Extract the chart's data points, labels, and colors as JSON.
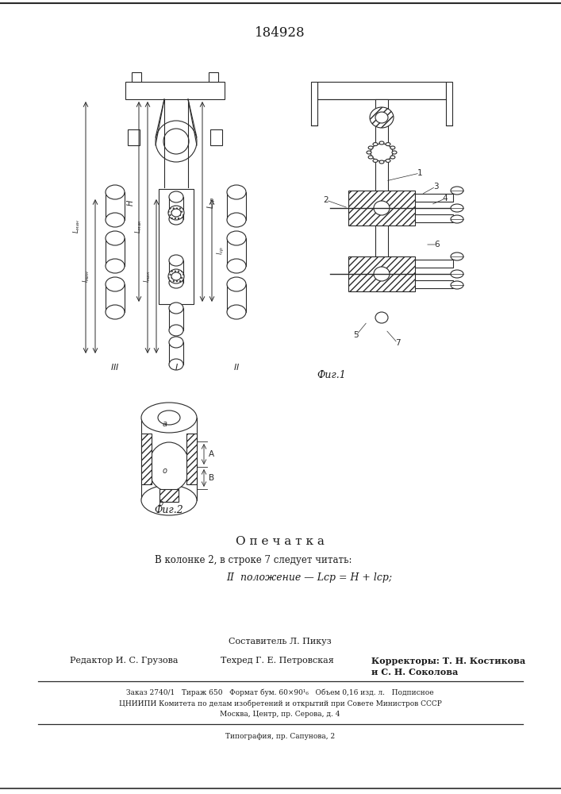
{
  "patent_number": "184928",
  "fig1_label": "Фиг.1",
  "fig2_label": "Фиг.2",
  "opechatka_title": "О п е ч а т к а",
  "opechatka_line1": "В колонке 2, в строке 7 следует читать:",
  "opechatka_line2": "II  положение — Lср = H + lср;",
  "sostavitel": "Составитель Л. Пикуз",
  "redaktor": "Редактор И. С. Грузова",
  "tehred": "Техред Г. Е. Петровская",
  "korrektory": "Корректоры: Т. Н. Костикова",
  "korrektory2": "и С. Н. Соколова",
  "footer1": "Заказ 2740/1   Тираж 650   Формат бум. 60×90¹₆   Объем 0,16 изд. л.   Подписное",
  "footer2": "ЦНИИПИ Комитета по делам изобретений и открытий при Совете Министров СССР",
  "footer3": "Москва, Центр, пр. Серова, д. 4",
  "footer4": "Типография, пр. Сапунова, 2",
  "bg_color": "#ffffff",
  "line_color": "#2a2a2a",
  "hatch_color": "#555555",
  "text_color": "#1a1a1a"
}
